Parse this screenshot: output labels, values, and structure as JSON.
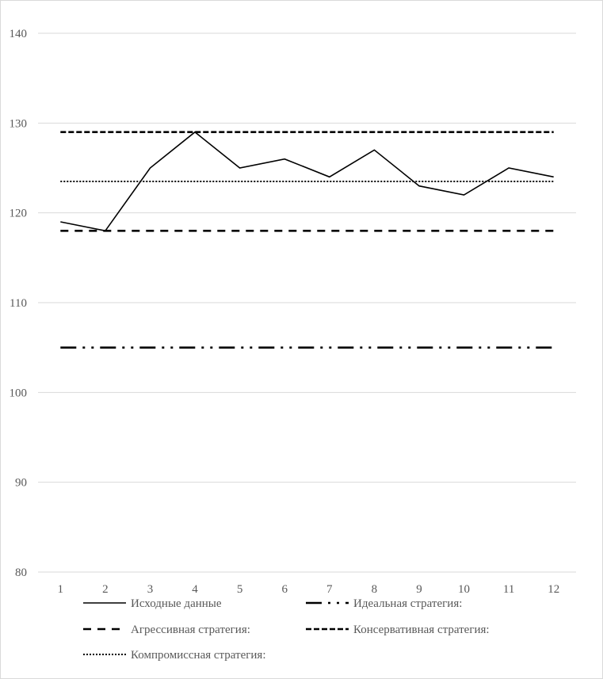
{
  "chart_data": {
    "type": "line",
    "title": "",
    "xlabel": "",
    "ylabel": "",
    "x": [
      1,
      2,
      3,
      4,
      5,
      6,
      7,
      8,
      9,
      10,
      11,
      12
    ],
    "ylim": [
      80,
      140
    ],
    "yticks": [
      80,
      90,
      100,
      110,
      120,
      130,
      140
    ],
    "grid": true,
    "legend_position": "bottom",
    "series": [
      {
        "name": "Исходные данные",
        "values": [
          119,
          118,
          125,
          129,
          125,
          126,
          124,
          127,
          123,
          122,
          125,
          124
        ],
        "style": "solid",
        "color": "#000000"
      },
      {
        "name": "Идеальная стратегия:",
        "values": [
          105,
          105,
          105,
          105,
          105,
          105,
          105,
          105,
          105,
          105,
          105,
          105
        ],
        "style": "long-dash-dot-dot",
        "color": "#000000"
      },
      {
        "name": "Агрессивная стратегия:",
        "values": [
          118,
          118,
          118,
          118,
          118,
          118,
          118,
          118,
          118,
          118,
          118,
          118
        ],
        "style": "dashed",
        "color": "#000000"
      },
      {
        "name": "Консервативная стратегия:",
        "values": [
          129,
          129,
          129,
          129,
          129,
          129,
          129,
          129,
          129,
          129,
          129,
          129
        ],
        "style": "short-dashed",
        "color": "#000000"
      },
      {
        "name": "Компромиссная стратегия:",
        "values": [
          123.5,
          123.5,
          123.5,
          123.5,
          123.5,
          123.5,
          123.5,
          123.5,
          123.5,
          123.5,
          123.5,
          123.5
        ],
        "style": "dotted",
        "color": "#000000"
      }
    ]
  }
}
